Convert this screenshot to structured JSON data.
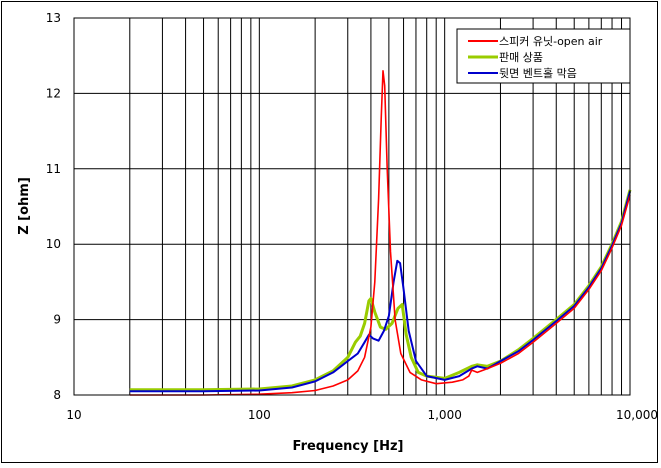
{
  "chart_data": {
    "type": "line",
    "title": "",
    "xlabel": "Frequency [Hz]",
    "ylabel": "Z [ohm]",
    "xscale": "log",
    "xlim": [
      10,
      10000
    ],
    "ylim": [
      8,
      13
    ],
    "x_tick_labels": [
      "10",
      "100",
      "1,000",
      "10,000"
    ],
    "x_ticks": [
      10,
      100,
      1000,
      10000
    ],
    "y_ticks": [
      8,
      9,
      10,
      11,
      12,
      13
    ],
    "y_tick_labels": [
      "8",
      "9",
      "10",
      "11",
      "12",
      "13"
    ],
    "grid": {
      "major_x": true,
      "minor_x": true,
      "major_y": true
    },
    "legend": {
      "position": "top-right",
      "entries": [
        "스피커 유닛-open air",
        "판매 상품",
        "뒷면 벤트홀 막음"
      ]
    },
    "series": [
      {
        "name": "스피커 유닛-open air",
        "color": "#ff0000",
        "width": 1.6,
        "x": [
          20,
          50,
          100,
          150,
          200,
          250,
          300,
          340,
          370,
          400,
          420,
          440,
          455,
          465,
          475,
          490,
          510,
          540,
          580,
          650,
          750,
          900,
          1100,
          1250,
          1350,
          1400,
          1500,
          1700,
          2000,
          2500,
          3000,
          4000,
          5000,
          6000,
          7000,
          8000,
          9000,
          10000
        ],
        "y": [
          8.0,
          8.0,
          8.01,
          8.03,
          8.06,
          8.12,
          8.2,
          8.32,
          8.5,
          8.9,
          9.5,
          10.6,
          11.7,
          12.3,
          12.1,
          11.0,
          9.9,
          9.0,
          8.55,
          8.3,
          8.2,
          8.15,
          8.17,
          8.2,
          8.25,
          8.33,
          8.3,
          8.35,
          8.42,
          8.55,
          8.7,
          8.95,
          9.15,
          9.4,
          9.65,
          9.95,
          10.25,
          10.65
        ]
      },
      {
        "name": "판매 상품",
        "color": "#99cc00",
        "width": 3,
        "x": [
          20,
          50,
          100,
          150,
          200,
          250,
          300,
          330,
          350,
          370,
          390,
          400,
          420,
          450,
          480,
          520,
          560,
          590,
          620,
          660,
          720,
          800,
          1000,
          1200,
          1400,
          1500,
          1700,
          2000,
          2500,
          3000,
          4000,
          5000,
          6000,
          7000,
          8000,
          9000,
          10000
        ],
        "y": [
          8.07,
          8.07,
          8.08,
          8.12,
          8.2,
          8.32,
          8.5,
          8.7,
          8.78,
          8.95,
          9.25,
          9.28,
          9.1,
          8.9,
          8.87,
          8.95,
          9.15,
          9.2,
          8.8,
          8.5,
          8.3,
          8.25,
          8.22,
          8.3,
          8.38,
          8.4,
          8.38,
          8.45,
          8.6,
          8.75,
          9.0,
          9.2,
          9.45,
          9.7,
          10.0,
          10.3,
          10.72
        ]
      },
      {
        "name": "뒷면 벤트홀 막음",
        "color": "#0000cc",
        "width": 2,
        "x": [
          20,
          50,
          100,
          150,
          200,
          250,
          300,
          340,
          370,
          390,
          410,
          440,
          470,
          500,
          530,
          555,
          575,
          600,
          640,
          700,
          800,
          1000,
          1200,
          1400,
          1500,
          1700,
          2000,
          2500,
          3000,
          4000,
          5000,
          6000,
          7000,
          8000,
          9000,
          10000
        ],
        "y": [
          8.05,
          8.05,
          8.06,
          8.1,
          8.18,
          8.3,
          8.45,
          8.55,
          8.7,
          8.8,
          8.75,
          8.72,
          8.85,
          9.05,
          9.5,
          9.78,
          9.75,
          9.4,
          8.85,
          8.45,
          8.25,
          8.2,
          8.25,
          8.35,
          8.38,
          8.35,
          8.45,
          8.58,
          8.73,
          8.98,
          9.18,
          9.43,
          9.68,
          9.98,
          10.28,
          10.7
        ]
      }
    ]
  },
  "axes": {
    "xlabel": "Frequency [Hz]",
    "ylabel": "Z [ohm]"
  },
  "legend": {
    "items": [
      {
        "label": "스피커 유닛-open air",
        "color": "#ff0000"
      },
      {
        "label": "판매 상품",
        "color": "#99cc00"
      },
      {
        "label": "뒷면 벤트홀 막음",
        "color": "#0000cc"
      }
    ]
  }
}
